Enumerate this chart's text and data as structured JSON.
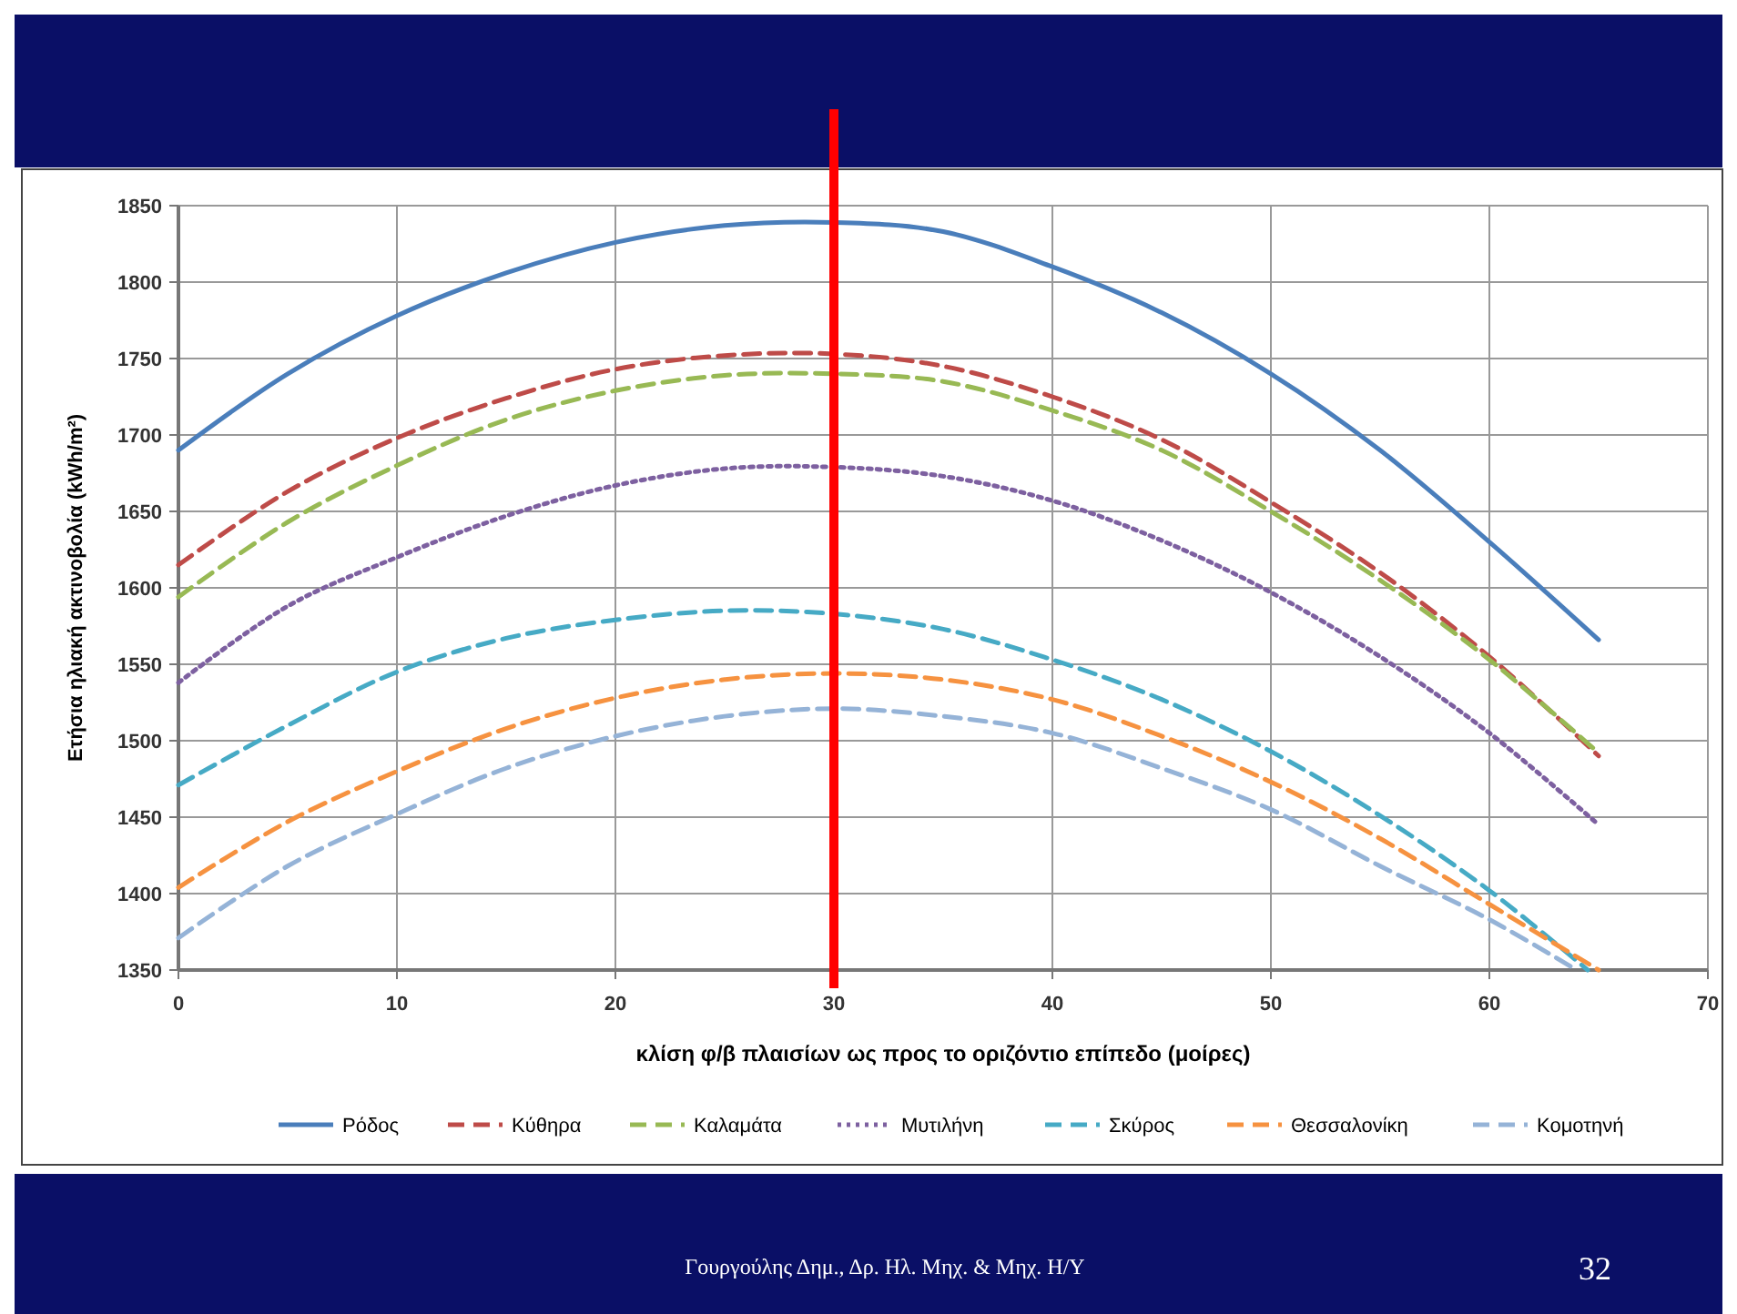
{
  "chart_data": {
    "type": "line",
    "xlabel": "κλίση φ/β πλαισίων ως προς το οριζόντιο επίπεδο (μοίρες)",
    "ylabel": "Ετήσια ηλιακή ακτινοβολία (kWh/m²)",
    "x": [
      0,
      5,
      10,
      15,
      20,
      25,
      30,
      35,
      40,
      45,
      50,
      55,
      60,
      65
    ],
    "xlim": [
      0,
      70
    ],
    "xticks": [
      0,
      10,
      20,
      30,
      40,
      50,
      60,
      70
    ],
    "ylim": [
      1350,
      1850
    ],
    "yticks": [
      1350,
      1400,
      1450,
      1500,
      1550,
      1600,
      1650,
      1700,
      1750,
      1800,
      1850
    ],
    "grid": true,
    "legend": "bottom",
    "marker": "none",
    "series": [
      {
        "name": "Ρόδος",
        "color": "#4a7ebb",
        "line_style": "solid",
        "values": [
          1690,
          1740,
          1778,
          1806,
          1826,
          1837,
          1839,
          1833,
          1810,
          1780,
          1740,
          1690,
          1630,
          1566
        ]
      },
      {
        "name": "Κύθηρα",
        "color": "#be4b48",
        "line_style": "dashed",
        "values": [
          1615,
          1663,
          1698,
          1724,
          1743,
          1752,
          1753,
          1745,
          1725,
          1697,
          1656,
          1610,
          1555,
          1490
        ]
      },
      {
        "name": "Καλαμάτα",
        "color": "#98b954",
        "line_style": "dashed",
        "values": [
          1594,
          1643,
          1680,
          1710,
          1729,
          1739,
          1740,
          1735,
          1716,
          1690,
          1650,
          1605,
          1553,
          1492
        ]
      },
      {
        "name": "Μυτιλήνη",
        "color": "#7d60a0",
        "line_style": "dotted",
        "values": [
          1538,
          1588,
          1620,
          1647,
          1667,
          1678,
          1679,
          1673,
          1657,
          1631,
          1597,
          1555,
          1505,
          1445
        ]
      },
      {
        "name": "Σκύρος",
        "color": "#46aac5",
        "line_style": "dashed",
        "x": [
          0,
          5,
          10,
          15,
          20,
          25,
          30,
          35,
          40,
          45,
          50,
          55,
          60,
          64.5
        ],
        "values": [
          1471,
          1510,
          1545,
          1567,
          1579,
          1585,
          1583,
          1573,
          1553,
          1527,
          1493,
          1451,
          1402,
          1350
        ]
      },
      {
        "name": "Θεσσαλονίκη",
        "color": "#f69240",
        "line_style": "dashed",
        "values": [
          1404,
          1447,
          1480,
          1508,
          1528,
          1540,
          1544,
          1540,
          1527,
          1503,
          1473,
          1436,
          1393,
          1350
        ]
      },
      {
        "name": "Κομοτηνή",
        "color": "#95b3d7",
        "line_style": "dashed",
        "x": [
          0,
          5,
          10,
          15,
          20,
          25,
          30,
          35,
          40,
          45,
          50,
          55,
          60,
          64
        ],
        "values": [
          1371,
          1418,
          1452,
          1482,
          1503,
          1516,
          1521,
          1516,
          1505,
          1482,
          1455,
          1418,
          1383,
          1350
        ]
      }
    ],
    "ref_lines": [
      {
        "axis": "x",
        "value": 30,
        "color": "#ff0000",
        "line_style": "solid"
      }
    ],
    "annotations": [
      "Γουργούλης Δημ., Δρ. Ηλ. Μηχ. & Μηχ. Η/Υ",
      "32"
    ]
  }
}
